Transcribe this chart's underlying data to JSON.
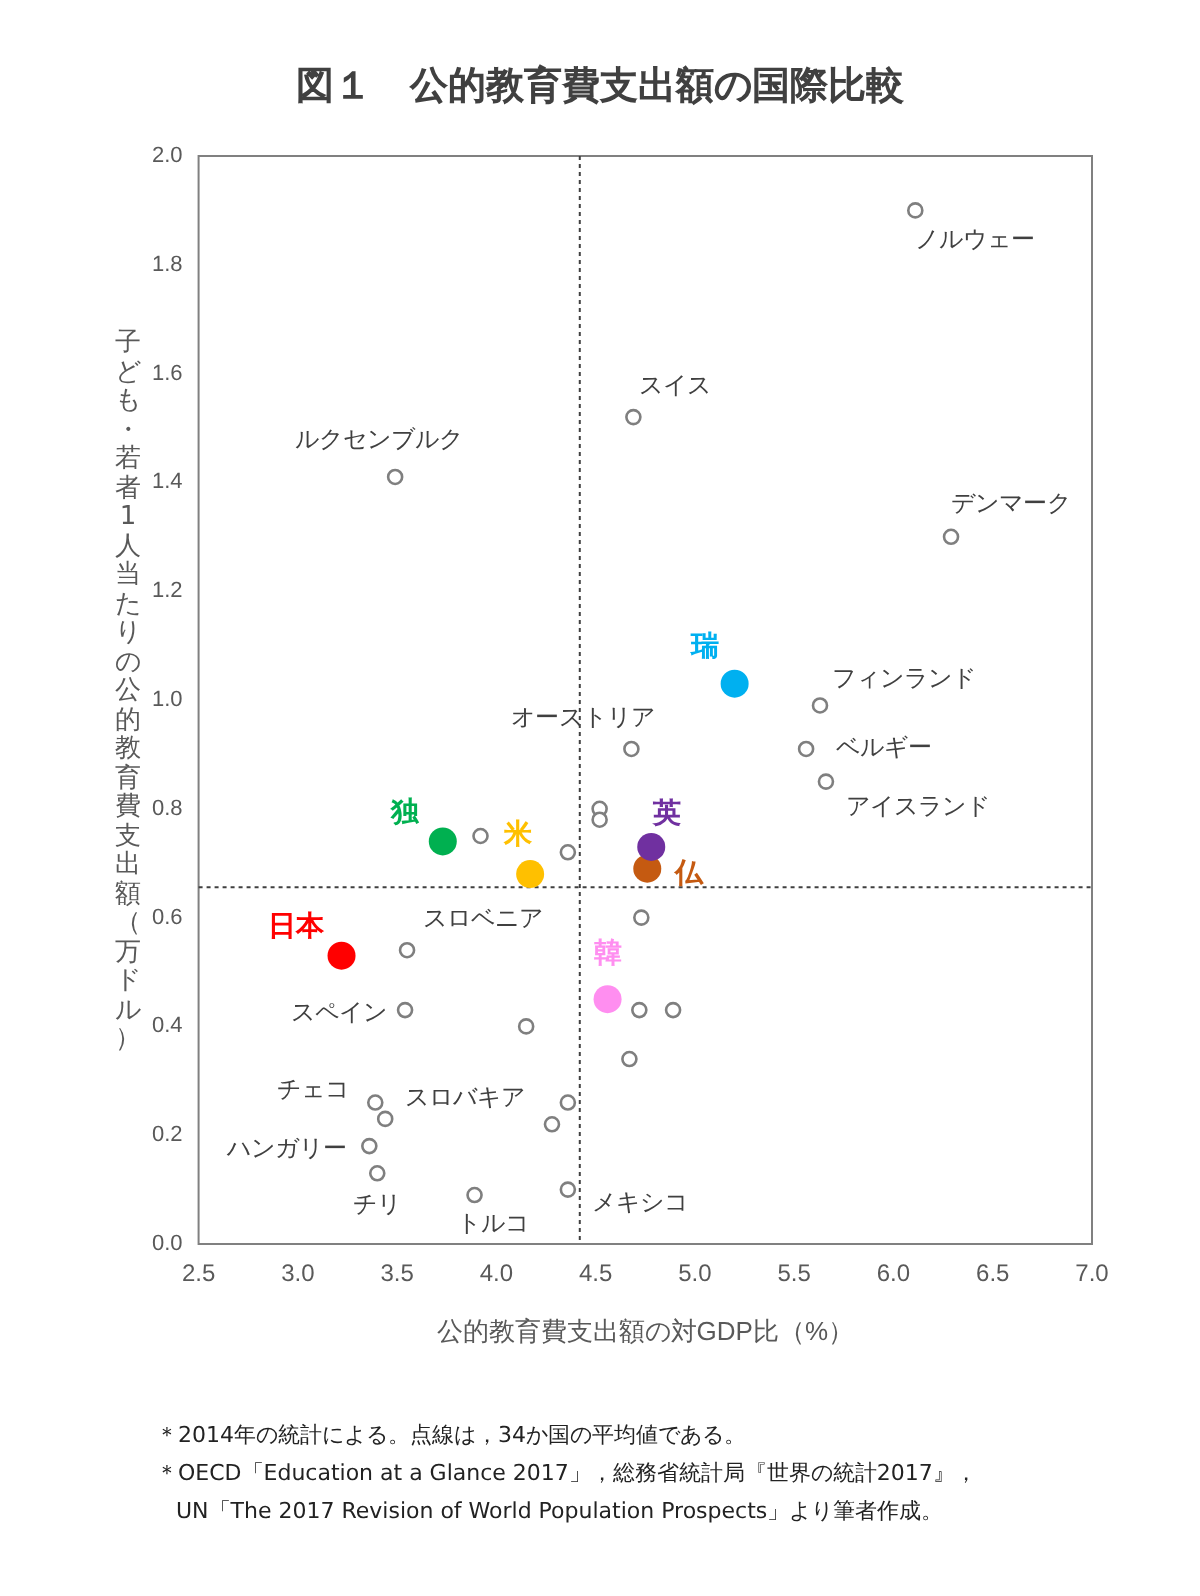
{
  "chart_data": {
    "type": "scatter",
    "title": "図１　公的教育費支出額の国際比較",
    "xlabel": "公的教育費支出額の対GDP比（%）",
    "ylabel": "子ども・若者1人当たりの公的教育費支出額（万ドル）",
    "xlim": [
      2.5,
      7.0
    ],
    "xticks": [
      2.5,
      {
        "value": 3,
        "label": "3.0"
      },
      3.5,
      {
        "value": 4,
        "label": "4.0"
      },
      4.5,
      {
        "value": 5,
        "label": "5.0"
      },
      5.5,
      {
        "value": 6,
        "label": "6.0"
      },
      6.5,
      {
        "value": 7,
        "label": "7.0"
      }
    ],
    "ylim": [
      0,
      2.0
    ],
    "yticks": [
      {
        "value": 0,
        "label": "0.0"
      },
      0.2,
      0.4,
      0.6,
      0.8,
      {
        "value": 1,
        "label": "1.0"
      },
      1.2,
      1.4,
      1.6,
      1.8,
      {
        "value": 2,
        "label": "2.0"
      }
    ],
    "marker": "circle",
    "series": [
      {
        "color": "#7f7f7f",
        "x": [
          6.11,
          4.69,
          3.49,
          6.29,
          5.63,
          4.68,
          5.56,
          5.66,
          4.52,
          4.52,
          3.92,
          4.36,
          3.55,
          4.73,
          4.72,
          4.89,
          3.54,
          4.15,
          4.67,
          3.39,
          3.44,
          4.36,
          4.28,
          3.36,
          3.4,
          3.89,
          4.36
        ],
        "values": [
          1.9,
          1.52,
          1.41,
          1.3,
          0.99,
          0.91,
          0.91,
          0.85,
          0.8,
          0.78,
          0.75,
          0.72,
          0.54,
          0.6,
          0.43,
          0.43,
          0.43,
          0.4,
          0.34,
          0.26,
          0.23,
          0.26,
          0.22,
          0.18,
          0.13,
          0.09,
          0.1
        ]
      },
      {
        "name": "日本",
        "color": "#ff0000",
        "x": [
          3.22
        ],
        "values": [
          0.53
        ]
      },
      {
        "name": "独",
        "color": "#00b050",
        "x": [
          3.73
        ],
        "values": [
          0.74
        ]
      },
      {
        "name": "米",
        "color": "#ffc000",
        "x": [
          4.17
        ],
        "values": [
          0.68
        ]
      },
      {
        "name": "英",
        "color": "#7030a0",
        "x": [
          4.78
        ],
        "values": [
          0.73
        ]
      },
      {
        "name": "仏",
        "color": "#c55a11",
        "x": [
          4.76
        ],
        "values": [
          0.69
        ]
      },
      {
        "name": "瑞",
        "color": "#00b0f0",
        "x": [
          5.2
        ],
        "values": [
          1.03
        ]
      },
      {
        "name": "韓",
        "color": "#ff8ef0",
        "x": [
          4.56
        ],
        "values": [
          0.45
        ]
      }
    ],
    "ref_lines": [
      {
        "axis": "x",
        "value": 4.42,
        "line_style": "dotted",
        "color": "#404040"
      },
      {
        "axis": "y",
        "value": 0.656,
        "line_style": "dotted",
        "color": "#404040"
      }
    ],
    "annotations": [
      {
        "text": "ノルウェー",
        "x": 6.11,
        "y": 1.9
      },
      {
        "text": "スイス",
        "x": 4.69,
        "y": 1.52
      },
      {
        "text": "ルクセンブルク",
        "x": 3.49,
        "y": 1.41
      },
      {
        "text": "デンマーク",
        "x": 6.29,
        "y": 1.3
      },
      {
        "text": "フィンランド",
        "x": 5.63,
        "y": 0.99
      },
      {
        "text": "オーストリア",
        "x": 4.68,
        "y": 0.91
      },
      {
        "text": "ベルギー",
        "x": 5.56,
        "y": 0.91
      },
      {
        "text": "アイスランド",
        "x": 5.66,
        "y": 0.85
      },
      {
        "text": "スロベニア",
        "x": 3.55,
        "y": 0.54
      },
      {
        "text": "スペイン",
        "x": 3.54,
        "y": 0.43
      },
      {
        "text": "チェコ",
        "x": 3.39,
        "y": 0.26
      },
      {
        "text": "スロバキア",
        "x": 3.44,
        "y": 0.23
      },
      {
        "text": "ハンガリー",
        "x": 3.36,
        "y": 0.18
      },
      {
        "text": "チリ",
        "x": 3.4,
        "y": 0.13
      },
      {
        "text": "トルコ",
        "x": 3.89,
        "y": 0.09
      },
      {
        "text": "メキシコ",
        "x": 4.36,
        "y": 0.1
      },
      "＊2014年の統計による。点線は，34か国の平均値である。",
      "＊OECD「Education at a Glance 2017」，総務省統計局『世界の統計2017』，UN「The 2017 Revision of World Population Prospects」より筆者作成。"
    ]
  }
}
